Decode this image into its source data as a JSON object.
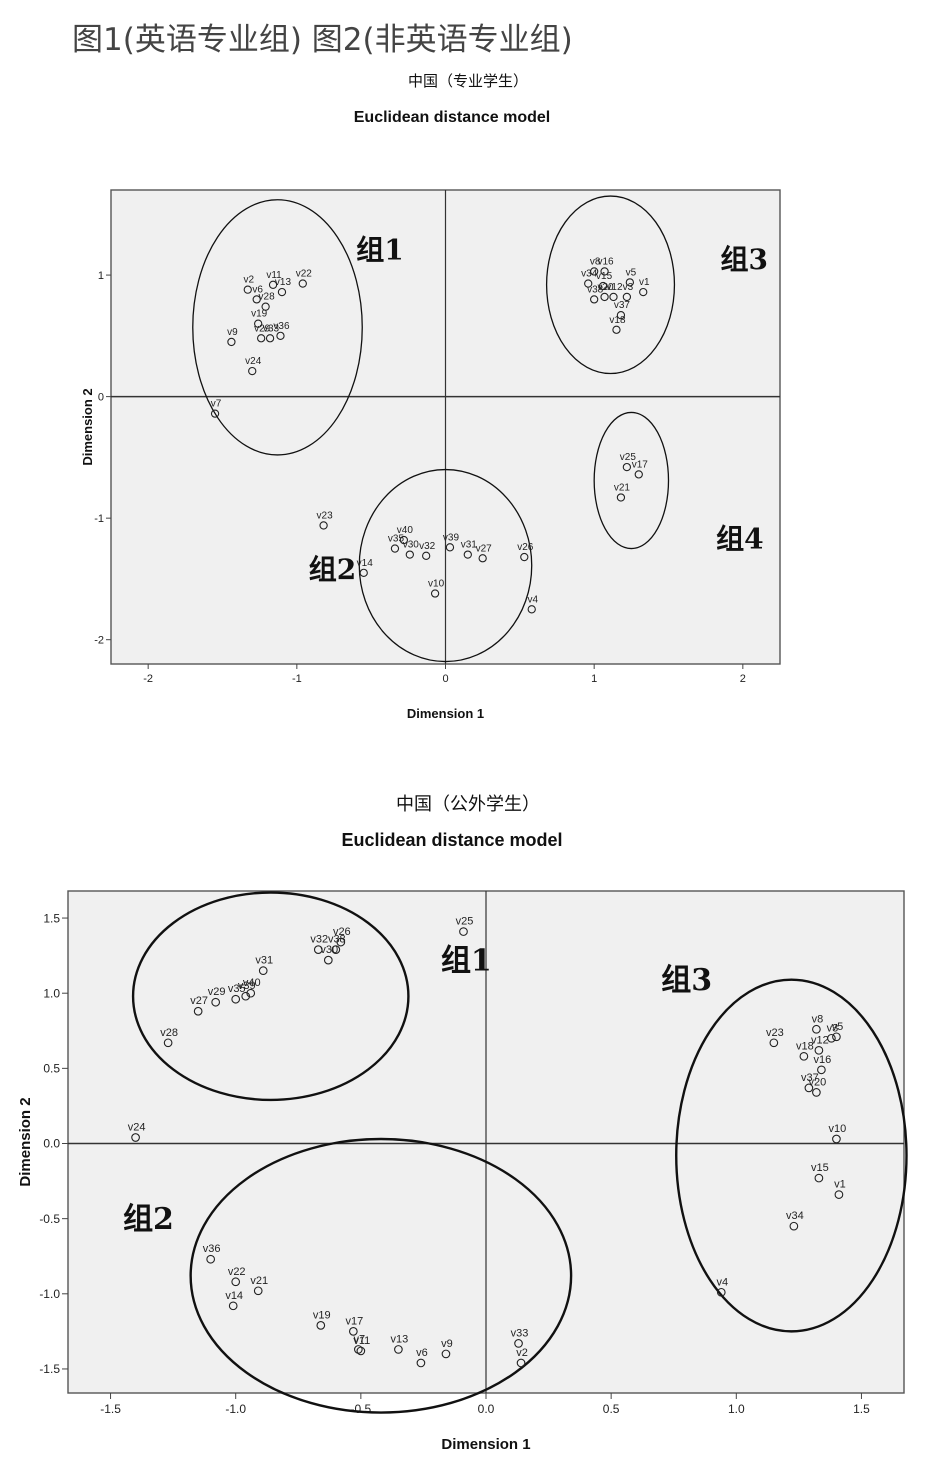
{
  "heading": "图1(英语专业组) 图2(非英语专业组)",
  "chart_data": [
    {
      "type": "scatter",
      "title": "中国（专业学生）",
      "subtitle": "Euclidean distance model",
      "xlabel": "Dimension 1",
      "ylabel": "Dimension 2",
      "xlim": [
        -2.25,
        2.25
      ],
      "ylim": [
        -2.2,
        1.7
      ],
      "xticks": [
        -2,
        -1,
        0,
        1,
        2
      ],
      "yticks": [
        -2,
        -1,
        0,
        1
      ],
      "xtick_labels": [
        "-2",
        "-1",
        "0",
        "1",
        "2"
      ],
      "ytick_labels": [
        "-2",
        "-1",
        "0",
        "1"
      ],
      "grid": false,
      "background": "#f0f0f0",
      "points": [
        {
          "label": "v2",
          "x": -1.33,
          "y": 0.88
        },
        {
          "label": "v11",
          "x": -1.16,
          "y": 0.92
        },
        {
          "label": "v22",
          "x": -0.96,
          "y": 0.93
        },
        {
          "label": "v6",
          "x": -1.27,
          "y": 0.8
        },
        {
          "label": "v13",
          "x": -1.1,
          "y": 0.86
        },
        {
          "label": "v28",
          "x": -1.21,
          "y": 0.74
        },
        {
          "label": "v19",
          "x": -1.26,
          "y": 0.6
        },
        {
          "label": "v9",
          "x": -1.44,
          "y": 0.45
        },
        {
          "label": "v29",
          "x": -1.24,
          "y": 0.48
        },
        {
          "label": "v36",
          "x": -1.11,
          "y": 0.5
        },
        {
          "label": "v24",
          "x": -1.3,
          "y": 0.21
        },
        {
          "label": "v33",
          "x": -1.18,
          "y": 0.48
        },
        {
          "label": "v7",
          "x": -1.55,
          "y": -0.14
        },
        {
          "label": "v8",
          "x": 1.0,
          "y": 1.03
        },
        {
          "label": "v16",
          "x": 1.07,
          "y": 1.03
        },
        {
          "label": "v34",
          "x": 0.96,
          "y": 0.93
        },
        {
          "label": "v15",
          "x": 1.06,
          "y": 0.91
        },
        {
          "label": "v5",
          "x": 1.24,
          "y": 0.94
        },
        {
          "label": "v1",
          "x": 1.33,
          "y": 0.86
        },
        {
          "label": "v12",
          "x": 1.13,
          "y": 0.82
        },
        {
          "label": "v3",
          "x": 1.22,
          "y": 0.82
        },
        {
          "label": "v38",
          "x": 1.0,
          "y": 0.8
        },
        {
          "label": "v20",
          "x": 1.07,
          "y": 0.82
        },
        {
          "label": "v37",
          "x": 1.18,
          "y": 0.67
        },
        {
          "label": "v18",
          "x": 1.15,
          "y": 0.55
        },
        {
          "label": "v25",
          "x": 1.22,
          "y": -0.58
        },
        {
          "label": "v17",
          "x": 1.3,
          "y": -0.64
        },
        {
          "label": "v21",
          "x": 1.18,
          "y": -0.83
        },
        {
          "label": "v23",
          "x": -0.82,
          "y": -1.06
        },
        {
          "label": "v40",
          "x": -0.28,
          "y": -1.18
        },
        {
          "label": "v30",
          "x": -0.24,
          "y": -1.3
        },
        {
          "label": "v32",
          "x": -0.13,
          "y": -1.31
        },
        {
          "label": "v39",
          "x": 0.03,
          "y": -1.24
        },
        {
          "label": "v31",
          "x": 0.15,
          "y": -1.3
        },
        {
          "label": "v27",
          "x": 0.25,
          "y": -1.33
        },
        {
          "label": "v14",
          "x": -0.55,
          "y": -1.45
        },
        {
          "label": "v35",
          "x": -0.34,
          "y": -1.25
        },
        {
          "label": "v10",
          "x": -0.07,
          "y": -1.62
        },
        {
          "label": "v26",
          "x": 0.53,
          "y": -1.32
        },
        {
          "label": "v4",
          "x": 0.58,
          "y": -1.75
        }
      ],
      "groups": [
        {
          "label": "组1",
          "cx": -1.13,
          "cy": 0.57,
          "rx": 0.57,
          "ry": 1.05,
          "label_x": -0.6,
          "label_y": 1.13
        },
        {
          "label": "组3",
          "cx": 1.11,
          "cy": 0.92,
          "rx": 0.43,
          "ry": 0.73,
          "label_x": 1.85,
          "label_y": 1.05
        },
        {
          "label": "组4",
          "cx": 1.25,
          "cy": -0.69,
          "rx": 0.25,
          "ry": 0.56,
          "label_x": 1.82,
          "label_y": -1.25
        },
        {
          "label": "组2",
          "cx": 0.0,
          "cy": -1.39,
          "rx": 0.58,
          "ry": 0.79,
          "label_x": -0.92,
          "label_y": -1.5
        }
      ]
    },
    {
      "type": "scatter",
      "title": "中国（公外学生）",
      "subtitle": "Euclidean distance model",
      "xlabel": "Dimension 1",
      "ylabel": "Dimension 2",
      "xlim": [
        -1.67,
        1.67
      ],
      "ylim": [
        -1.66,
        1.68
      ],
      "xticks": [
        -1.5,
        -1.0,
        -0.5,
        0.0,
        0.5,
        1.0,
        1.5
      ],
      "yticks": [
        -1.5,
        -1.0,
        -0.5,
        0.0,
        0.5,
        1.0,
        1.5
      ],
      "xtick_labels": [
        "-1.5",
        "-1.0",
        "-0.5",
        "0.0",
        "0.5",
        "1.0",
        "1.5"
      ],
      "ytick_labels": [
        "-1.5",
        "-1.0",
        "-0.5",
        "0.0",
        "0.5",
        "1.0",
        "1.5"
      ],
      "grid": false,
      "background": "#f0f0f0",
      "points": [
        {
          "label": "v25",
          "x": -0.09,
          "y": 1.41
        },
        {
          "label": "v26",
          "x": -0.58,
          "y": 1.34
        },
        {
          "label": "v32",
          "x": -0.67,
          "y": 1.29
        },
        {
          "label": "v30",
          "x": -0.63,
          "y": 1.22
        },
        {
          "label": "v38",
          "x": -0.6,
          "y": 1.29
        },
        {
          "label": "v31",
          "x": -0.89,
          "y": 1.15
        },
        {
          "label": "v40",
          "x": -0.94,
          "y": 1.0
        },
        {
          "label": "v39",
          "x": -0.96,
          "y": 0.98
        },
        {
          "label": "v29",
          "x": -1.08,
          "y": 0.94
        },
        {
          "label": "v35",
          "x": -1.0,
          "y": 0.96
        },
        {
          "label": "v27",
          "x": -1.15,
          "y": 0.88
        },
        {
          "label": "v28",
          "x": -1.27,
          "y": 0.67
        },
        {
          "label": "v24",
          "x": -1.4,
          "y": 0.04
        },
        {
          "label": "v8",
          "x": 1.32,
          "y": 0.76
        },
        {
          "label": "v5",
          "x": 1.4,
          "y": 0.71
        },
        {
          "label": "v23",
          "x": 1.15,
          "y": 0.67
        },
        {
          "label": "v18",
          "x": 1.27,
          "y": 0.58
        },
        {
          "label": "v3",
          "x": 1.38,
          "y": 0.7
        },
        {
          "label": "v12",
          "x": 1.33,
          "y": 0.62
        },
        {
          "label": "v16",
          "x": 1.34,
          "y": 0.49
        },
        {
          "label": "v37",
          "x": 1.29,
          "y": 0.37
        },
        {
          "label": "v20",
          "x": 1.32,
          "y": 0.34
        },
        {
          "label": "v10",
          "x": 1.4,
          "y": 0.03
        },
        {
          "label": "v15",
          "x": 1.33,
          "y": -0.23
        },
        {
          "label": "v1",
          "x": 1.41,
          "y": -0.34
        },
        {
          "label": "v34",
          "x": 1.23,
          "y": -0.55
        },
        {
          "label": "v4",
          "x": 0.94,
          "y": -0.99
        },
        {
          "label": "v36",
          "x": -1.1,
          "y": -0.77
        },
        {
          "label": "v22",
          "x": -1.0,
          "y": -0.92
        },
        {
          "label": "v21",
          "x": -0.91,
          "y": -0.98
        },
        {
          "label": "v14",
          "x": -1.01,
          "y": -1.08
        },
        {
          "label": "v19",
          "x": -0.66,
          "y": -1.21
        },
        {
          "label": "v17",
          "x": -0.53,
          "y": -1.25
        },
        {
          "label": "v7",
          "x": -0.51,
          "y": -1.37
        },
        {
          "label": "v11",
          "x": -0.5,
          "y": -1.38
        },
        {
          "label": "v13",
          "x": -0.35,
          "y": -1.37
        },
        {
          "label": "v6",
          "x": -0.26,
          "y": -1.46
        },
        {
          "label": "v9",
          "x": -0.16,
          "y": -1.4
        },
        {
          "label": "v33",
          "x": 0.13,
          "y": -1.33
        },
        {
          "label": "v2",
          "x": 0.14,
          "y": -1.46
        }
      ],
      "groups": [
        {
          "label": "组1",
          "cx": -0.86,
          "cy": 0.98,
          "rx": 0.55,
          "ry": 0.69,
          "label_x": -0.18,
          "label_y": 1.15
        },
        {
          "label": "组3",
          "cx": 1.22,
          "cy": -0.08,
          "rx": 0.46,
          "ry": 1.17,
          "label_x": 0.7,
          "label_y": 1.02
        },
        {
          "label": "组2",
          "cx": -0.42,
          "cy": -0.88,
          "rx": 0.76,
          "ry": 0.91,
          "label_x": -1.45,
          "label_y": -0.57
        }
      ]
    }
  ]
}
